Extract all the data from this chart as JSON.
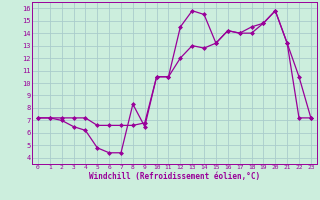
{
  "line1_x": [
    0,
    1,
    2,
    3,
    4,
    5,
    6,
    7,
    8,
    9,
    10,
    11,
    12,
    13,
    14,
    15,
    16,
    17,
    18,
    19,
    20,
    21,
    22,
    23
  ],
  "line1_y": [
    7.2,
    7.2,
    7.0,
    6.5,
    6.2,
    4.8,
    4.4,
    4.4,
    8.3,
    6.5,
    10.5,
    10.5,
    14.5,
    15.8,
    15.5,
    13.2,
    14.2,
    14.0,
    14.0,
    14.8,
    15.8,
    13.2,
    10.5,
    7.2
  ],
  "line2_x": [
    0,
    1,
    2,
    3,
    4,
    5,
    6,
    7,
    8,
    9,
    10,
    11,
    12,
    13,
    14,
    15,
    16,
    17,
    18,
    19,
    20,
    21,
    22,
    23
  ],
  "line2_y": [
    7.2,
    7.2,
    7.2,
    7.2,
    7.2,
    6.6,
    6.6,
    6.6,
    6.6,
    6.8,
    10.5,
    10.5,
    12.0,
    13.0,
    12.8,
    13.2,
    14.2,
    14.0,
    14.5,
    14.8,
    15.8,
    13.2,
    7.2,
    7.2
  ],
  "color": "#990099",
  "bg_color": "#cceedd",
  "grid_color": "#aacccc",
  "xlabel": "Windchill (Refroidissement éolien,°C)",
  "xlim": [
    -0.5,
    23.5
  ],
  "ylim": [
    3.5,
    16.5
  ],
  "yticks": [
    4,
    5,
    6,
    7,
    8,
    9,
    10,
    11,
    12,
    13,
    14,
    15,
    16
  ],
  "xticks": [
    0,
    1,
    2,
    3,
    4,
    5,
    6,
    7,
    8,
    9,
    10,
    11,
    12,
    13,
    14,
    15,
    16,
    17,
    18,
    19,
    20,
    21,
    22,
    23
  ],
  "marker": "D",
  "markersize": 2.0,
  "linewidth": 0.9
}
